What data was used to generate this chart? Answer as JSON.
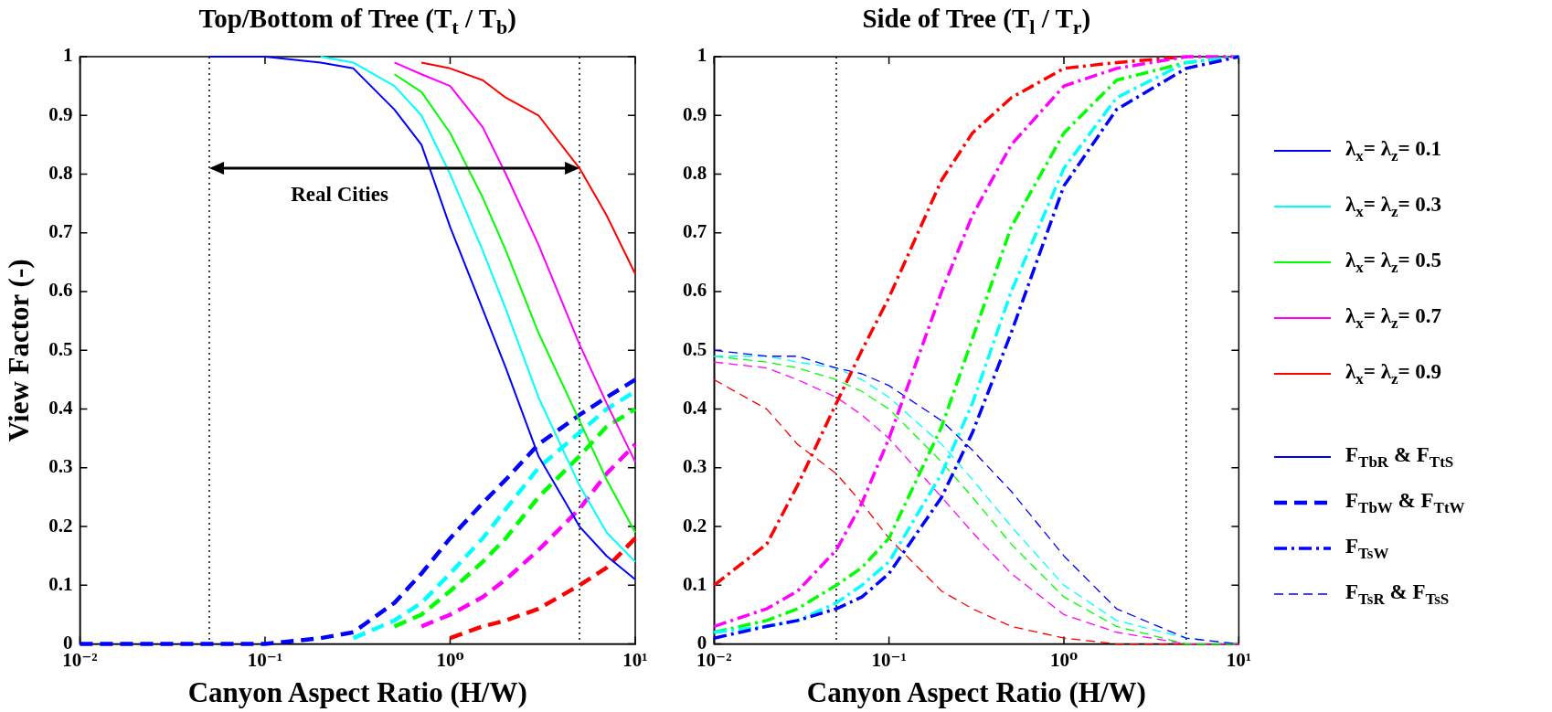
{
  "chart_data": [
    {
      "type": "line",
      "title": "Top/Bottom of Tree (T$_{t}$ / T$_{b}$)",
      "xlabel": "Canyon Aspect Ratio (H/W)",
      "ylabel": "View Factor (-)",
      "log": "x",
      "xlim": [
        0.01,
        10
      ],
      "ylim": [
        0,
        1
      ],
      "xticks": [
        {
          "value": 0.01,
          "label": "10⁻²"
        },
        {
          "value": 0.1,
          "label": "10⁻¹"
        },
        {
          "value": 1,
          "label": "10⁰"
        },
        {
          "value": 10,
          "label": "10¹"
        }
      ],
      "yticks": [
        0,
        0.1,
        0.2,
        0.3,
        0.4,
        0.5,
        0.6,
        0.7,
        0.8,
        0.9,
        1
      ],
      "legend": "right",
      "ref_lines": [
        {
          "axis": "x",
          "value": 0.05,
          "color": "#000000",
          "line_style": "dotted"
        },
        {
          "axis": "x",
          "value": 5,
          "color": "#000000",
          "line_style": "dotted"
        }
      ],
      "annotations": [
        "Real Cities",
        "F$_{TbR}$ & F$_{TtS}$"
      ],
      "series": [
        {
          "name": "λ$_{x}$= λ$_{z}$= 0.1",
          "color": "#0000ff",
          "line_style": "solid",
          "x": [
            0.05,
            0.1,
            0.2,
            0.3,
            0.5,
            0.7,
            1,
            1.5,
            2,
            3,
            5,
            7,
            10
          ],
          "values": [
            1,
            1,
            0.99,
            0.98,
            0.91,
            0.85,
            0.71,
            0.57,
            0.47,
            0.32,
            0.2,
            0.15,
            0.11
          ]
        },
        {
          "name": "λ$_{x}$= λ$_{z}$= 0.3",
          "color": "#00ffff",
          "line_style": "solid",
          "x": [
            0.2,
            0.3,
            0.5,
            0.7,
            1,
            1.5,
            2,
            3,
            5,
            7,
            10
          ],
          "values": [
            1,
            0.99,
            0.95,
            0.9,
            0.8,
            0.67,
            0.57,
            0.42,
            0.27,
            0.19,
            0.14
          ]
        },
        {
          "name": "λ$_{x}$= λ$_{z}$= 0.5",
          "color": "#00ff00",
          "line_style": "solid",
          "x": [
            0.5,
            0.7,
            1,
            1.5,
            2,
            3,
            5,
            7,
            10
          ],
          "values": [
            0.97,
            0.94,
            0.87,
            0.76,
            0.67,
            0.53,
            0.38,
            0.28,
            0.19
          ]
        },
        {
          "name": "λ$_{x}$= λ$_{z}$= 0.7",
          "color": "#ff00ff",
          "line_style": "solid",
          "x": [
            0.5,
            0.7,
            1,
            1.5,
            2,
            3,
            5,
            7,
            10
          ],
          "values": [
            0.99,
            0.97,
            0.95,
            0.88,
            0.8,
            0.68,
            0.51,
            0.41,
            0.31
          ]
        },
        {
          "name": "λ$_{x}$= λ$_{z}$= 0.9",
          "color": "#ff0000",
          "line_style": "solid",
          "x": [
            0.7,
            1,
            1.5,
            2,
            3,
            5,
            7,
            10
          ],
          "values": [
            0.99,
            0.98,
            0.96,
            0.93,
            0.9,
            0.81,
            0.73,
            0.63
          ]
        },
        {
          "name": "F$_{TbW}$ & F$_{TtW}$",
          "color": "#0000ff",
          "line_style": "dashed",
          "x": [
            0.01,
            0.05,
            0.1,
            0.2,
            0.3,
            0.5,
            0.7,
            1,
            1.5,
            2,
            3,
            5,
            7,
            10
          ],
          "values": [
            0,
            0,
            0,
            0.01,
            0.02,
            0.07,
            0.12,
            0.18,
            0.24,
            0.28,
            0.34,
            0.39,
            0.42,
            0.45
          ]
        },
        {
          "color": "#00ffff",
          "line_style": "dashed",
          "x": [
            0.3,
            0.5,
            0.7,
            1,
            1.5,
            2,
            3,
            5,
            7,
            10
          ],
          "values": [
            0.01,
            0.04,
            0.07,
            0.12,
            0.18,
            0.23,
            0.3,
            0.36,
            0.4,
            0.43
          ]
        },
        {
          "color": "#00ff00",
          "line_style": "dashed",
          "x": [
            0.5,
            0.7,
            1,
            1.5,
            2,
            3,
            5,
            7,
            10
          ],
          "values": [
            0.03,
            0.05,
            0.09,
            0.14,
            0.18,
            0.25,
            0.32,
            0.37,
            0.4
          ]
        },
        {
          "color": "#ff00ff",
          "line_style": "dashed",
          "x": [
            0.7,
            1,
            1.5,
            2,
            3,
            5,
            7,
            10
          ],
          "values": [
            0.03,
            0.05,
            0.08,
            0.11,
            0.16,
            0.23,
            0.29,
            0.34
          ]
        },
        {
          "color": "#ff0000",
          "line_style": "dashed",
          "x": [
            1,
            1.5,
            2,
            3,
            5,
            7,
            10
          ],
          "values": [
            0.01,
            0.03,
            0.04,
            0.06,
            0.1,
            0.13,
            0.18
          ]
        }
      ]
    },
    {
      "type": "line",
      "title": "Side of Tree (T$_{l}$ / T$_{r}$)",
      "xlabel": "Canyon Aspect Ratio (H/W)",
      "log": "x",
      "xlim": [
        0.01,
        10
      ],
      "ylim": [
        0,
        1
      ],
      "xticks": [
        {
          "value": 0.01,
          "label": "10⁻²"
        },
        {
          "value": 0.1,
          "label": "10⁻¹"
        },
        {
          "value": 1,
          "label": "10⁰"
        },
        {
          "value": 10,
          "label": "10¹"
        }
      ],
      "yticks": [
        0,
        0.1,
        0.2,
        0.3,
        0.4,
        0.5,
        0.6,
        0.7,
        0.8,
        0.9,
        1
      ],
      "legend": "right",
      "ref_lines": [
        {
          "axis": "x",
          "value": 0.05,
          "color": "#000000",
          "line_style": "dotted"
        },
        {
          "axis": "x",
          "value": 5,
          "color": "#000000",
          "line_style": "dotted"
        }
      ],
      "series": [
        {
          "name": "F$_{TsW}$",
          "color": "#0000ff",
          "line_style": "dashdot",
          "x": [
            0.01,
            0.02,
            0.03,
            0.05,
            0.07,
            0.1,
            0.2,
            0.3,
            0.5,
            1,
            2,
            5,
            10
          ],
          "values": [
            0.01,
            0.03,
            0.04,
            0.06,
            0.08,
            0.12,
            0.25,
            0.36,
            0.53,
            0.78,
            0.91,
            0.98,
            1
          ]
        },
        {
          "color": "#00ffff",
          "line_style": "dashdot",
          "x": [
            0.01,
            0.02,
            0.03,
            0.05,
            0.07,
            0.1,
            0.2,
            0.3,
            0.5,
            1,
            2,
            5,
            10
          ],
          "values": [
            0.02,
            0.03,
            0.04,
            0.07,
            0.1,
            0.14,
            0.29,
            0.41,
            0.6,
            0.81,
            0.93,
            0.99,
            1
          ]
        },
        {
          "color": "#00ff00",
          "line_style": "dashdot",
          "x": [
            0.01,
            0.02,
            0.03,
            0.05,
            0.07,
            0.1,
            0.2,
            0.3,
            0.5,
            1,
            2,
            5,
            10
          ],
          "values": [
            0.02,
            0.04,
            0.06,
            0.1,
            0.13,
            0.18,
            0.37,
            0.52,
            0.71,
            0.87,
            0.96,
            0.99,
            1
          ]
        },
        {
          "color": "#ff00ff",
          "line_style": "dashdot",
          "x": [
            0.01,
            0.02,
            0.03,
            0.05,
            0.07,
            0.1,
            0.2,
            0.3,
            0.5,
            1,
            2,
            5,
            10
          ],
          "values": [
            0.03,
            0.06,
            0.09,
            0.16,
            0.24,
            0.35,
            0.6,
            0.73,
            0.85,
            0.95,
            0.98,
            1,
            1
          ]
        },
        {
          "color": "#ff0000",
          "line_style": "dashdot",
          "x": [
            0.01,
            0.02,
            0.03,
            0.05,
            0.07,
            0.1,
            0.2,
            0.3,
            0.5,
            1,
            2,
            5
          ],
          "values": [
            0.1,
            0.17,
            0.27,
            0.41,
            0.5,
            0.59,
            0.79,
            0.87,
            0.93,
            0.98,
            0.99,
            1
          ]
        },
        {
          "name": "F$_{TsR}$ & F$_{TsS}$",
          "color": "#0000ff",
          "line_style": "dashed",
          "x": [
            0.01,
            0.02,
            0.03,
            0.05,
            0.07,
            0.1,
            0.2,
            0.3,
            0.5,
            1,
            2,
            5,
            10
          ],
          "values": [
            0.5,
            0.49,
            0.49,
            0.47,
            0.46,
            0.44,
            0.38,
            0.33,
            0.26,
            0.15,
            0.06,
            0.01,
            0
          ]
        },
        {
          "color": "#00ffff",
          "line_style": "dashed",
          "x": [
            0.01,
            0.02,
            0.03,
            0.05,
            0.07,
            0.1,
            0.2,
            0.3,
            0.5,
            1,
            2,
            5,
            10
          ],
          "values": [
            0.49,
            0.49,
            0.48,
            0.47,
            0.45,
            0.42,
            0.34,
            0.28,
            0.2,
            0.1,
            0.04,
            0.01,
            0
          ]
        },
        {
          "color": "#00ff00",
          "line_style": "dashed",
          "x": [
            0.01,
            0.02,
            0.03,
            0.05,
            0.07,
            0.1,
            0.2,
            0.3,
            0.5,
            1,
            2,
            5,
            10
          ],
          "values": [
            0.49,
            0.48,
            0.47,
            0.45,
            0.43,
            0.4,
            0.31,
            0.25,
            0.17,
            0.08,
            0.03,
            0,
            0
          ]
        },
        {
          "color": "#ff00ff",
          "line_style": "dashed",
          "x": [
            0.01,
            0.02,
            0.03,
            0.05,
            0.07,
            0.1,
            0.2,
            0.3,
            0.5,
            1,
            2,
            5,
            10
          ],
          "values": [
            0.48,
            0.47,
            0.45,
            0.42,
            0.39,
            0.35,
            0.25,
            0.19,
            0.12,
            0.05,
            0.02,
            0,
            0
          ]
        },
        {
          "color": "#ff0000",
          "line_style": "dashed",
          "x": [
            0.01,
            0.02,
            0.03,
            0.05,
            0.07,
            0.1,
            0.2,
            0.3,
            0.5,
            1,
            2,
            5,
            10
          ],
          "values": [
            0.45,
            0.4,
            0.34,
            0.29,
            0.24,
            0.18,
            0.09,
            0.06,
            0.03,
            0.01,
            0,
            0,
            0
          ]
        }
      ]
    }
  ]
}
